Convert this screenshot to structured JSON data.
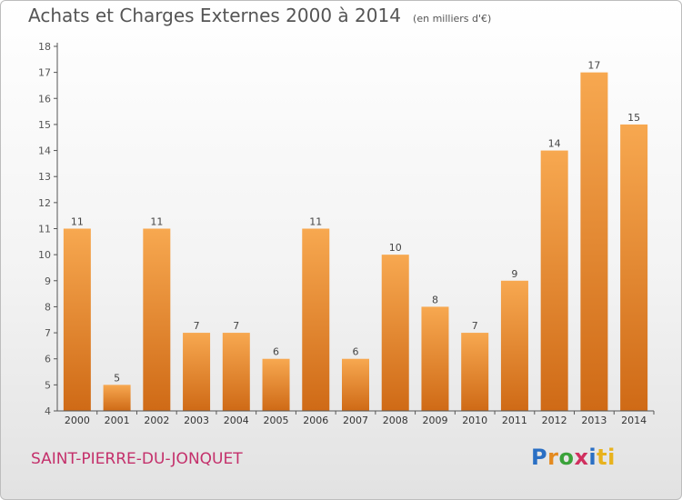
{
  "title": "Achats et Charges Externes 2000 à 2014",
  "unit": "(en milliers d'€)",
  "commune": "SAINT-PIERRE-DU-JONQUET",
  "logo": {
    "letters": [
      "P",
      "r",
      "o",
      "x",
      "i",
      "ti"
    ]
  },
  "colors": {
    "bar_light": "#f7a850",
    "bar_dark": "#cf6a16",
    "commune": "#c4306b",
    "axis": "#555555"
  },
  "chart_data": {
    "type": "bar",
    "title": "Achats et Charges Externes 2000 à 2014",
    "categories": [
      "2000",
      "2001",
      "2002",
      "2003",
      "2004",
      "2005",
      "2006",
      "2007",
      "2008",
      "2009",
      "2010",
      "2011",
      "2012",
      "2013",
      "2014"
    ],
    "values": [
      11,
      5,
      11,
      7,
      7,
      6,
      11,
      6,
      10,
      8,
      7,
      9,
      14,
      17,
      15
    ],
    "ylim": [
      4,
      18
    ],
    "yticks": [
      4,
      5,
      6,
      7,
      8,
      9,
      10,
      11,
      12,
      13,
      14,
      15,
      16,
      17,
      18
    ],
    "grid": false,
    "data_labels": true
  }
}
